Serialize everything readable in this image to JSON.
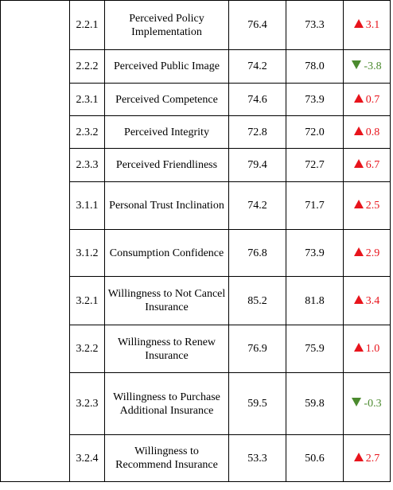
{
  "rows": [
    {
      "code": "2.2.1",
      "name": "Perceived Policy Implementation",
      "v1": "76.4",
      "v2": "73.3",
      "change": "3.1",
      "dir": "up"
    },
    {
      "code": "2.2.2",
      "name": "Perceived Public Image",
      "v1": "74.2",
      "v2": "78.0",
      "change": "-3.8",
      "dir": "down"
    },
    {
      "code": "2.3.1",
      "name": "Perceived Competence",
      "v1": "74.6",
      "v2": "73.9",
      "change": "0.7",
      "dir": "up"
    },
    {
      "code": "2.3.2",
      "name": "Perceived Integrity",
      "v1": "72.8",
      "v2": "72.0",
      "change": "0.8",
      "dir": "up"
    },
    {
      "code": "2.3.3",
      "name": "Perceived Friendliness",
      "v1": "79.4",
      "v2": "72.7",
      "change": "6.7",
      "dir": "up"
    },
    {
      "code": "3.1.1",
      "name": "Personal Trust Inclination",
      "v1": "74.2",
      "v2": "71.7",
      "change": "2.5",
      "dir": "up"
    },
    {
      "code": "3.1.2",
      "name": "Consumption Confidence",
      "v1": "76.8",
      "v2": "73.9",
      "change": "2.9",
      "dir": "up"
    },
    {
      "code": "3.2.1",
      "name": "Willingness to Not Cancel Insurance",
      "v1": "85.2",
      "v2": "81.8",
      "change": "3.4",
      "dir": "up"
    },
    {
      "code": "3.2.2",
      "name": "Willingness to Renew Insurance",
      "v1": "76.9",
      "v2": "75.9",
      "change": "1.0",
      "dir": "up"
    },
    {
      "code": "3.2.3",
      "name": "Willingness to Purchase Additional Insurance",
      "v1": "59.5",
      "v2": "59.8",
      "change": "-0.3",
      "dir": "down"
    },
    {
      "code": "3.2.4",
      "name": "Willingness to Recommend Insurance",
      "v1": "53.3",
      "v2": "50.6",
      "change": "2.7",
      "dir": "up"
    }
  ],
  "colors": {
    "up": "#e8141c",
    "down": "#4b8a2e"
  },
  "icons": {
    "up": "triangle-up-icon",
    "down": "triangle-down-icon"
  }
}
